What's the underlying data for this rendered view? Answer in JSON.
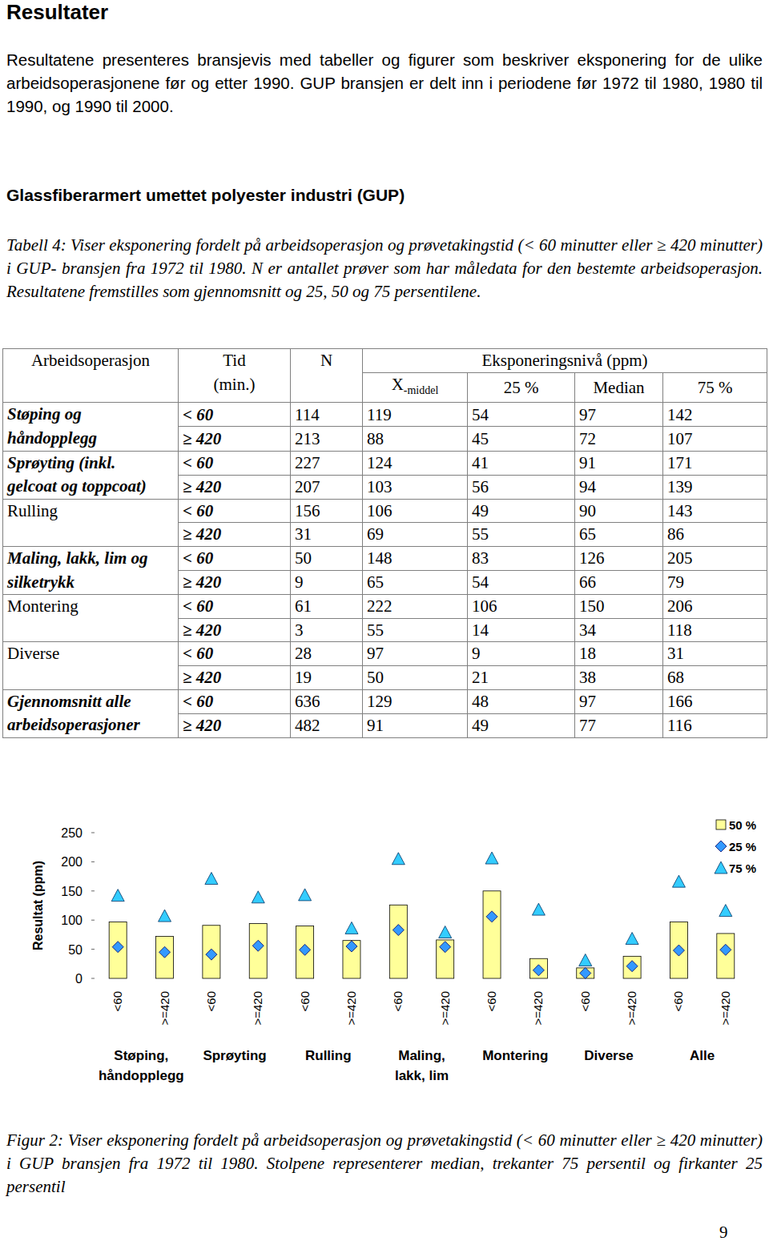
{
  "heading": "Resultater",
  "intro": "Resultatene presenteres bransjevis med tabeller og figurer som beskriver eksponering for de ulike arbeidsoperasjonene før og etter 1990. GUP bransjen er delt inn i periodene før 1972 til 1980, 1980 til 1990, og 1990 til 2000.",
  "section_title": "Glassfiberarmert umettet polyester industri (GUP)",
  "table_caption": "Tabell 4: Viser eksponering fordelt på arbeidsoperasjon og prøvetakingstid (< 60 minutter eller ≥ 420 minutter) i GUP- bransjen fra 1972 til 1980. N er antallet prøver som har måledata for den bestemte arbeidsoperasjon. Resultatene fremstilles som gjennomsnitt og 25, 50 og 75 persentilene.",
  "table": {
    "header": {
      "operation": "Arbeidsoperasjon",
      "time": [
        "Tid",
        "(min.)"
      ],
      "n": "N",
      "level": "Eksponeringsnivå (ppm)",
      "mean": {
        "base": "X",
        "sub": "-middel"
      },
      "p25": "25 %",
      "median": "Median",
      "p75": "75 %"
    },
    "rows": [
      {
        "operation": [
          "Støping og",
          "håndopplegg"
        ],
        "sub": [
          {
            "time": "< 60",
            "n": 114,
            "mean": 119,
            "p25": 54,
            "median": 97,
            "p75": 142
          },
          {
            "time": "≥ 420",
            "n": 213,
            "mean": 88,
            "p25": 45,
            "median": 72,
            "p75": 107
          }
        ]
      },
      {
        "operation": [
          "Sprøyting (inkl.",
          "gelcoat og toppcoat)"
        ],
        "sub": [
          {
            "time": "< 60",
            "n": 227,
            "mean": 124,
            "p25": 41,
            "median": 91,
            "p75": 171
          },
          {
            "time": "≥ 420",
            "n": 207,
            "mean": 103,
            "p25": 56,
            "median": 94,
            "p75": 139
          }
        ]
      },
      {
        "operation": [
          "Rulling"
        ],
        "sub": [
          {
            "time": "< 60",
            "n": 156,
            "mean": 106,
            "p25": 49,
            "median": 90,
            "p75": 143
          },
          {
            "time": "≥ 420",
            "n": 31,
            "mean": 69,
            "p25": 55,
            "median": 65,
            "p75": 86
          }
        ]
      },
      {
        "operation": [
          "Maling, lakk, lim og",
          "silketrykk"
        ],
        "sub": [
          {
            "time": "< 60",
            "n": 50,
            "mean": 148,
            "p25": 83,
            "median": 126,
            "p75": 205
          },
          {
            "time": "≥ 420",
            "n": 9,
            "mean": 65,
            "p25": 54,
            "median": 66,
            "p75": 79
          }
        ]
      },
      {
        "operation": [
          "Montering"
        ],
        "sub": [
          {
            "time": "< 60",
            "n": 61,
            "mean": 222,
            "p25": 106,
            "median": 150,
            "p75": 206
          },
          {
            "time": "≥ 420",
            "n": 3,
            "mean": 55,
            "p25": 14,
            "median": 34,
            "p75": 118
          }
        ]
      },
      {
        "operation": [
          "Diverse"
        ],
        "sub": [
          {
            "time": "< 60",
            "n": 28,
            "mean": 97,
            "p25": 9,
            "median": 18,
            "p75": 31
          },
          {
            "time": "≥ 420",
            "n": 19,
            "mean": 50,
            "p25": 21,
            "median": 38,
            "p75": 68
          }
        ]
      },
      {
        "operation": [
          "Gjennomsnitt alle",
          "arbeidsoperasjoner"
        ],
        "sub": [
          {
            "time": "< 60",
            "n": 636,
            "mean": 129,
            "p25": 48,
            "median": 97,
            "p75": 166
          },
          {
            "time": "≥ 420",
            "n": 482,
            "mean": 91,
            "p25": 49,
            "median": 77,
            "p75": 116
          }
        ]
      }
    ]
  },
  "chart_data": {
    "type": "bar",
    "y_label": "Resultat (ppm)",
    "categories": [
      "<60",
      ">=420",
      "<60",
      ">=420",
      "<60",
      ">=420",
      "<60",
      ">=420",
      "<60",
      ">=420",
      "<60",
      ">=420",
      "<60",
      ">=420"
    ],
    "group_labels": [
      [
        "Støping,",
        "håndopplegg"
      ],
      [
        "Sprøyting"
      ],
      [
        "Rulling"
      ],
      [
        "Maling,",
        "lakk, lim"
      ],
      [
        "Montering"
      ],
      [
        "Diverse"
      ],
      [
        "Alle"
      ]
    ],
    "series": [
      {
        "name": "50 %",
        "type": "bar",
        "color": "#ffff99",
        "values": [
          97,
          72,
          91,
          94,
          90,
          65,
          126,
          66,
          150,
          34,
          18,
          38,
          97,
          77
        ]
      },
      {
        "name": "25 %",
        "type": "scatter",
        "marker": "diamond",
        "color": "#3399ff",
        "values": [
          54,
          45,
          41,
          56,
          49,
          55,
          83,
          54,
          106,
          14,
          9,
          21,
          48,
          49
        ]
      },
      {
        "name": "75 %",
        "type": "scatter",
        "marker": "triangle",
        "color": "#33ccff",
        "values": [
          142,
          107,
          171,
          139,
          143,
          86,
          205,
          79,
          206,
          118,
          31,
          68,
          166,
          116
        ]
      }
    ],
    "ylim": [
      0,
      250
    ],
    "yticks": [
      0,
      50,
      100,
      150,
      200,
      250
    ],
    "grid": false,
    "legend": "top-right"
  },
  "figure_caption": "Figur 2: Viser eksponering fordelt på arbeidsoperasjon og prøvetakingstid (< 60 minutter eller ≥ 420 minutter) i GUP bransjen fra 1972 til 1980. Stolpene representerer median, trekanter 75 persentil og firkanter 25 persentil",
  "page_number": 9
}
